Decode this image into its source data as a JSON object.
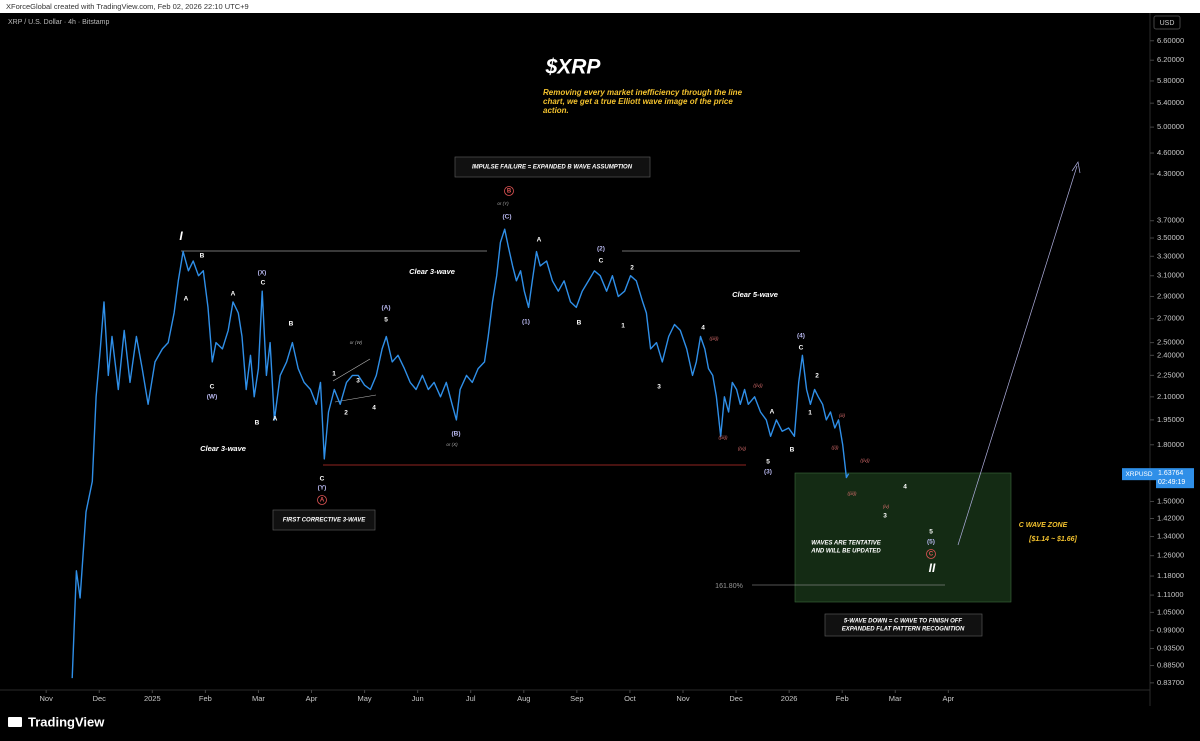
{
  "header": {
    "credit": "XForceGlobal created with TradingView.com, Feb 02, 2026 22:10 UTC+9",
    "symbol": "XRP / U.S. Dollar · 4h · Bitstamp",
    "currency": "USD"
  },
  "chart_data": {
    "type": "line",
    "title": "$XRP",
    "subtitle": "Removing every market inefficiency through the line chart, we get a true Elliott wave image of the price action.",
    "yscale": "log",
    "xlim": [
      -0.87,
      20.8
    ],
    "xticks": [
      {
        "value": 0,
        "label": "Nov"
      },
      {
        "value": 1,
        "label": "Dec"
      },
      {
        "value": 2,
        "label": "2025"
      },
      {
        "value": 3,
        "label": "Feb"
      },
      {
        "value": 4,
        "label": "Mar"
      },
      {
        "value": 5,
        "label": "Apr"
      },
      {
        "value": 6,
        "label": "May"
      },
      {
        "value": 7,
        "label": "Jun"
      },
      {
        "value": 8,
        "label": "Jul"
      },
      {
        "value": 9,
        "label": "Aug"
      },
      {
        "value": 10,
        "label": "Sep"
      },
      {
        "value": 11,
        "label": "Oct"
      },
      {
        "value": 12,
        "label": "Nov"
      },
      {
        "value": 13,
        "label": "Dec"
      },
      {
        "value": 14,
        "label": "2026"
      },
      {
        "value": 15,
        "label": "Feb"
      },
      {
        "value": 16,
        "label": "Mar"
      },
      {
        "value": 17,
        "label": "Apr"
      }
    ],
    "ylim": [
      0.818,
      7.24
    ],
    "yticks": [
      {
        "value": 6.6,
        "label": "6.60000"
      },
      {
        "value": 6.2,
        "label": "6.20000"
      },
      {
        "value": 5.8,
        "label": "5.80000"
      },
      {
        "value": 5.4,
        "label": "5.40000"
      },
      {
        "value": 5.0,
        "label": "5.00000"
      },
      {
        "value": 4.6,
        "label": "4.60000"
      },
      {
        "value": 4.3,
        "label": "4.30000"
      },
      {
        "value": 3.7,
        "label": "3.70000"
      },
      {
        "value": 3.5,
        "label": "3.50000"
      },
      {
        "value": 3.3,
        "label": "3.30000"
      },
      {
        "value": 3.1,
        "label": "3.10000"
      },
      {
        "value": 2.9,
        "label": "2.90000"
      },
      {
        "value": 2.7,
        "label": "2.70000"
      },
      {
        "value": 2.5,
        "label": "2.50000"
      },
      {
        "value": 2.4,
        "label": "2.40000"
      },
      {
        "value": 2.25,
        "label": "2.25000"
      },
      {
        "value": 2.1,
        "label": "2.10000"
      },
      {
        "value": 1.95,
        "label": "1.95000"
      },
      {
        "value": 1.8,
        "label": "1.80000"
      },
      {
        "value": 1.5,
        "label": "1.50000"
      },
      {
        "value": 1.42,
        "label": "1.42000"
      },
      {
        "value": 1.34,
        "label": "1.34000"
      },
      {
        "value": 1.26,
        "label": "1.26000"
      },
      {
        "value": 1.18,
        "label": "1.18000"
      },
      {
        "value": 1.11,
        "label": "1.11000"
      },
      {
        "value": 1.05,
        "label": "1.05000"
      },
      {
        "value": 0.99,
        "label": "0.99000"
      },
      {
        "value": 0.935,
        "label": "0.93500"
      },
      {
        "value": 0.885,
        "label": "0.88500"
      },
      {
        "value": 0.837,
        "label": "0.83700"
      }
    ],
    "x": [
      0.49,
      0.57,
      0.64,
      0.75,
      0.87,
      0.94,
      1.02,
      1.09,
      1.17,
      1.24,
      1.36,
      1.47,
      1.58,
      1.7,
      1.81,
      1.92,
      2.05,
      2.19,
      2.3,
      2.41,
      2.49,
      2.58,
      2.68,
      2.77,
      2.87,
      2.96,
      3.05,
      3.13,
      3.2,
      3.32,
      3.43,
      3.52,
      3.62,
      3.69,
      3.77,
      3.85,
      3.92,
      4.0,
      4.07,
      4.15,
      4.22,
      4.3,
      4.41,
      4.53,
      4.64,
      4.75,
      4.86,
      4.98,
      5.09,
      5.17,
      5.24,
      5.32,
      5.43,
      5.54,
      5.66,
      5.77,
      5.88,
      6.0,
      6.11,
      6.22,
      6.33,
      6.41,
      6.52,
      6.63,
      6.75,
      6.86,
      6.97,
      7.09,
      7.2,
      7.31,
      7.43,
      7.54,
      7.65,
      7.73,
      7.8,
      7.92,
      8.03,
      8.14,
      8.26,
      8.33,
      8.41,
      8.49,
      8.56,
      8.64,
      8.71,
      8.79,
      8.86,
      8.94,
      9.01,
      9.09,
      9.16,
      9.24,
      9.31,
      9.43,
      9.54,
      9.65,
      9.76,
      9.88,
      9.99,
      10.1,
      10.22,
      10.33,
      10.44,
      10.56,
      10.67,
      10.78,
      10.9,
      11.01,
      11.12,
      11.24,
      11.31,
      11.39,
      11.5,
      11.61,
      11.73,
      11.84,
      11.95,
      12.07,
      12.18,
      12.25,
      12.33,
      12.41,
      12.48,
      12.56,
      12.63,
      12.71,
      12.78,
      12.86,
      12.93,
      13.01,
      13.08,
      13.16,
      13.23,
      13.35,
      13.46,
      13.57,
      13.65,
      13.76,
      13.87,
      13.99,
      14.1,
      14.18,
      14.25,
      14.33,
      14.4,
      14.48,
      14.55,
      14.63,
      14.7,
      14.78,
      14.86,
      14.93,
      15.01,
      15.08,
      15.12
    ],
    "series": [
      {
        "name": "XRPUSD",
        "color": "#2f8fe8",
        "values": [
          0.85,
          1.2,
          1.1,
          1.45,
          1.6,
          2.1,
          2.45,
          2.85,
          2.25,
          2.55,
          2.15,
          2.6,
          2.2,
          2.55,
          2.3,
          2.05,
          2.35,
          2.45,
          2.5,
          2.75,
          3.05,
          3.35,
          3.15,
          3.25,
          3.1,
          3.15,
          2.8,
          2.35,
          2.5,
          2.45,
          2.6,
          2.85,
          2.75,
          2.55,
          2.15,
          2.4,
          2.1,
          2.3,
          2.95,
          2.25,
          2.5,
          1.95,
          2.25,
          2.35,
          2.5,
          2.3,
          2.2,
          2.15,
          2.05,
          2.2,
          1.72,
          2.0,
          2.15,
          2.05,
          2.2,
          2.25,
          2.25,
          2.18,
          2.15,
          2.25,
          2.45,
          2.55,
          2.35,
          2.4,
          2.3,
          2.2,
          2.15,
          2.25,
          2.15,
          2.2,
          2.1,
          2.2,
          2.05,
          1.95,
          2.15,
          2.25,
          2.2,
          2.3,
          2.35,
          2.55,
          2.85,
          3.1,
          3.45,
          3.6,
          3.4,
          3.2,
          3.05,
          3.15,
          2.95,
          2.8,
          3.05,
          3.35,
          3.2,
          3.25,
          3.05,
          2.95,
          3.05,
          2.85,
          2.8,
          2.95,
          3.05,
          3.15,
          3.1,
          2.95,
          3.1,
          2.9,
          2.95,
          3.1,
          3.05,
          2.85,
          2.75,
          2.45,
          2.5,
          2.35,
          2.55,
          2.65,
          2.6,
          2.45,
          2.25,
          2.35,
          2.55,
          2.45,
          2.3,
          2.25,
          2.1,
          1.85,
          2.1,
          2.0,
          2.2,
          2.15,
          2.05,
          2.15,
          2.05,
          2.1,
          2.0,
          1.95,
          1.85,
          1.95,
          1.88,
          1.9,
          1.85,
          2.2,
          2.4,
          2.15,
          2.05,
          2.15,
          2.1,
          2.05,
          1.95,
          2.0,
          1.9,
          1.95,
          1.8,
          1.62,
          1.64
        ]
      }
    ],
    "last_value": 1.63764,
    "countdown": "02:49:19",
    "annotations": [
      "I",
      "B",
      "A",
      "A",
      "(X)",
      "C",
      "B",
      "C",
      "(W)",
      "B",
      "A",
      "Clear 3-wave",
      "C",
      "(Y)",
      "A",
      "or (W)",
      "1",
      "3",
      "2",
      "4",
      "(A)",
      "5",
      "(B)",
      "or (X)",
      "Clear 3-wave",
      "B",
      "or (Y)",
      "(C)",
      "A",
      "(1)",
      "B",
      "(2)",
      "C",
      "2",
      "1",
      "3",
      "4",
      "((iii))",
      "((iv))",
      "((iii))",
      "((v))",
      "Clear 5-wave",
      "A",
      "B",
      "5",
      "(3)",
      "(4)",
      "C",
      "2",
      "1",
      "(iii)",
      "((i))",
      "((iv))",
      "((iii))",
      "4",
      "(iv)",
      "3",
      "5",
      "(5)",
      "C",
      "II",
      "161.80%",
      "C WAVE ZONE",
      "[$1.14 ~ $1.66]"
    ],
    "boxes": [
      [
        "IMPULSE FAILURE = EXPANDED B WAVE ASSUMPTION"
      ],
      [
        "FIRST CORRECTIVE 3-WAVE"
      ],
      [
        "5-WAVE DOWN = C WAVE TO FINISH OFF",
        "EXPANDED FLAT PATTERN RECOGNITION"
      ]
    ],
    "notes": [
      "WAVES ARE TENTATIVE",
      "AND WILL BE UPDATED"
    ]
  },
  "footer": {
    "brand": "TradingView"
  }
}
